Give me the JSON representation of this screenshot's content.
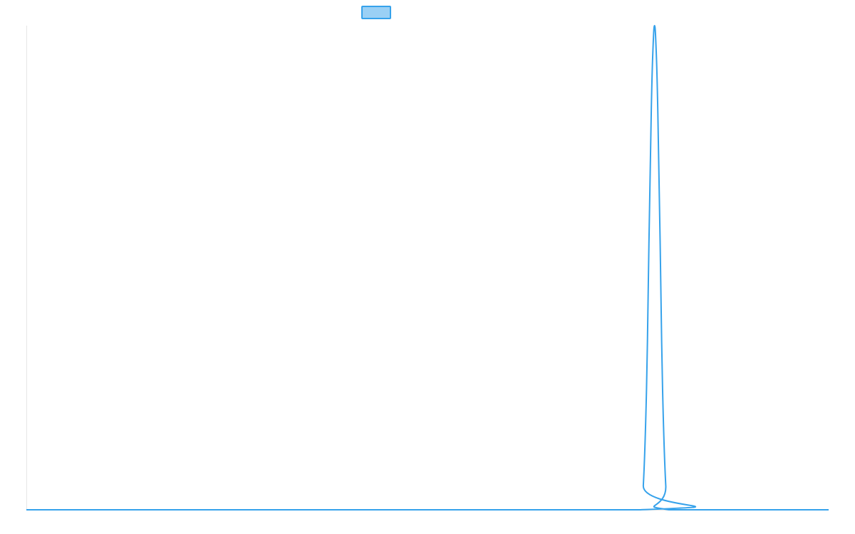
{
  "colors": {
    "line": "#36a2eb",
    "legend_fill": "#9ad0f5",
    "axis": "#e6e6e6"
  },
  "chart_data": {
    "type": "line",
    "title": "",
    "xlabel": "",
    "ylabel": "",
    "legend": {
      "placement": "top-center",
      "entries": [
        {
          "name": ""
        }
      ]
    },
    "grid": false,
    "x_range": [
      0,
      1000
    ],
    "ylim": [
      0,
      1
    ],
    "series": [
      {
        "name": "",
        "points": [
          [
            0,
            0
          ],
          [
            765,
            0
          ],
          [
            769,
            0.05
          ],
          [
            773,
            0.25
          ],
          [
            776,
            0.55
          ],
          [
            779,
            0.83
          ],
          [
            781,
            0.95
          ],
          [
            783,
            1.0
          ],
          [
            785,
            0.95
          ],
          [
            787,
            0.83
          ],
          [
            790,
            0.55
          ],
          [
            793,
            0.25
          ],
          [
            797,
            0.05
          ],
          [
            801,
            0
          ],
          [
            1000,
            0
          ]
        ]
      }
    ]
  }
}
